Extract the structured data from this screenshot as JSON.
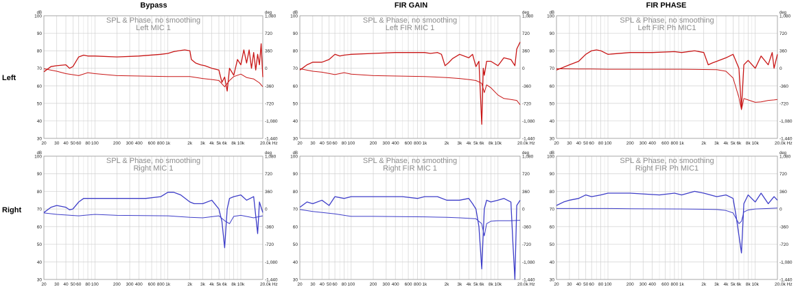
{
  "headers": {
    "columns": [
      "Bypass",
      "FIR GAIN",
      "FIR PHASE"
    ],
    "rows": [
      "Left",
      "Right"
    ]
  },
  "axis": {
    "left_unit": "dB",
    "right_unit": "deg",
    "x_ticks": [
      "20",
      "30",
      "40",
      "50",
      "60",
      "80",
      "100",
      "200",
      "300",
      "400",
      "600",
      "800",
      "1k",
      "2k",
      "3k",
      "4k",
      "5k",
      "6k",
      "8k",
      "10k",
      "20.0k Hz"
    ],
    "y_ticks": [
      "30",
      "40",
      "50",
      "60",
      "70",
      "80",
      "90",
      "100"
    ],
    "phase_ticks": [
      "1,080",
      "720",
      "360",
      "0",
      "-360",
      "-720",
      "-1,080",
      "-1,440"
    ]
  },
  "colors": {
    "left": "#c81414",
    "right": "#3c3cc8",
    "title": "#8c8c8c",
    "grid": "#d0d0d0"
  },
  "chart_data": [
    {
      "type": "line",
      "row": "Left",
      "column": "Bypass",
      "title": "SPL & Phase, no smoothing",
      "subtitle": "Left MIC 1",
      "xlabel": "Hz",
      "ylabel": "dB",
      "y2label": "deg",
      "xscale": "log",
      "xlim": [
        20,
        20000
      ],
      "ylim": [
        30,
        100
      ],
      "y2lim": [
        -1440,
        1080
      ],
      "series": [
        {
          "axis": "spl",
          "x": [
            20,
            25,
            30,
            40,
            45,
            50,
            60,
            70,
            80,
            100,
            200,
            400,
            800,
            1000,
            1200,
            1400,
            1700,
            2000,
            2100,
            2400,
            2800,
            3200,
            4000,
            5000,
            5500,
            6000,
            6500,
            7000,
            8000,
            9000,
            10000,
            11000,
            12000,
            13000,
            14000,
            15000,
            16000,
            17000,
            18000,
            19000,
            20000
          ],
          "values": [
            68,
            71,
            71.5,
            72,
            70,
            71,
            76.5,
            77.5,
            77,
            77,
            76.5,
            77,
            78,
            78.5,
            79.5,
            80,
            80.5,
            80,
            75,
            73,
            72,
            71.5,
            70,
            69,
            62,
            65,
            57,
            70,
            66,
            75,
            72,
            80.5,
            73,
            80.5,
            70,
            79,
            69,
            78,
            72,
            84,
            65
          ]
        },
        {
          "axis": "phase",
          "x": [
            20,
            30,
            40,
            60,
            80,
            100,
            200,
            1000,
            2000,
            3000,
            4000,
            5000,
            6000,
            7000,
            8000,
            10000,
            12000,
            15000,
            18000,
            20000
          ],
          "values": [
            -10,
            -60,
            -110,
            -150,
            -90,
            -110,
            -150,
            -170,
            -170,
            -210,
            -230,
            -250,
            -380,
            -250,
            -170,
            -120,
            -190,
            -220,
            -300,
            -380
          ]
        }
      ]
    },
    {
      "type": "line",
      "row": "Left",
      "column": "FIR GAIN",
      "title": "SPL & Phase, no smoothing",
      "subtitle": "Left FIR MIC 1",
      "xlabel": "Hz",
      "ylabel": "dB",
      "y2label": "deg",
      "xscale": "log",
      "xlim": [
        20,
        20000
      ],
      "ylim": [
        30,
        100
      ],
      "y2lim": [
        -1440,
        1080
      ],
      "series": [
        {
          "axis": "spl",
          "x": [
            20,
            25,
            30,
            40,
            50,
            60,
            70,
            80,
            100,
            200,
            400,
            800,
            1000,
            1200,
            1500,
            1700,
            1900,
            2100,
            2400,
            3000,
            4000,
            4500,
            5000,
            5500,
            6000,
            6300,
            6500,
            7000,
            8000,
            10000,
            12000,
            15000,
            17000,
            18000,
            20000
          ],
          "values": [
            69,
            72,
            73.5,
            73.5,
            75,
            78,
            77,
            77.5,
            78,
            78.5,
            79,
            79,
            79,
            78.5,
            79,
            78,
            71.5,
            73,
            75.5,
            78,
            76,
            78,
            71,
            74,
            38,
            70,
            66,
            74,
            74,
            71.5,
            76,
            75,
            71.5,
            81,
            85
          ]
        },
        {
          "axis": "phase",
          "x": [
            20,
            30,
            40,
            60,
            80,
            100,
            200,
            1000,
            2000,
            3000,
            4000,
            5000,
            6000,
            6500,
            7000,
            8000,
            10000,
            12000,
            15000,
            18000,
            20000
          ],
          "values": [
            -10,
            -60,
            -80,
            -130,
            -90,
            -120,
            -150,
            -170,
            -190,
            -210,
            -230,
            -250,
            -310,
            -500,
            -340,
            -400,
            -550,
            -620,
            -640,
            -660,
            -750
          ]
        }
      ]
    },
    {
      "type": "line",
      "row": "Left",
      "column": "FIR PHASE",
      "title": "SPL & Phase, no smoothing",
      "subtitle": "Left FIR Ph MIC1",
      "xlabel": "Hz",
      "ylabel": "dB",
      "y2label": "deg",
      "xscale": "log",
      "xlim": [
        20,
        20000
      ],
      "ylim": [
        30,
        100
      ],
      "y2lim": [
        -1440,
        1080
      ],
      "series": [
        {
          "axis": "spl",
          "x": [
            20,
            30,
            40,
            50,
            60,
            70,
            80,
            100,
            200,
            400,
            800,
            1000,
            1500,
            2000,
            2300,
            2600,
            3000,
            4000,
            5000,
            6000,
            6500,
            7000,
            8000,
            10000,
            12000,
            15000,
            17000,
            18000,
            20000
          ],
          "values": [
            69,
            72,
            74,
            78,
            80,
            80.5,
            80,
            78,
            79,
            79,
            79.5,
            79,
            80,
            79,
            72,
            73,
            74,
            76,
            78,
            70,
            47,
            72,
            74.5,
            70,
            77,
            72,
            79,
            70,
            78
          ]
        },
        {
          "axis": "phase",
          "x": [
            20,
            40,
            60,
            100,
            200,
            1000,
            2000,
            3000,
            4000,
            5000,
            6000,
            6500,
            7000,
            8000,
            10000,
            12000,
            15000,
            18000,
            20000
          ],
          "values": [
            -10,
            -15,
            -15,
            -20,
            -20,
            -20,
            -25,
            -30,
            -60,
            -200,
            -600,
            -850,
            -620,
            -650,
            -700,
            -690,
            -660,
            -650,
            -640
          ]
        }
      ]
    },
    {
      "type": "line",
      "row": "Right",
      "column": "Bypass",
      "title": "SPL & Phase, no smoothing",
      "subtitle": "Right MIC 1",
      "xlabel": "Hz",
      "ylabel": "dB",
      "y2label": "deg",
      "xscale": "log",
      "xlim": [
        20,
        20000
      ],
      "ylim": [
        30,
        100
      ],
      "y2lim": [
        -1440,
        1080
      ],
      "series": [
        {
          "axis": "spl",
          "x": [
            20,
            25,
            30,
            40,
            45,
            50,
            60,
            70,
            80,
            100,
            200,
            500,
            800,
            1000,
            1200,
            1500,
            2000,
            2300,
            3000,
            4000,
            5000,
            5500,
            6000,
            6500,
            7000,
            8000,
            10000,
            12000,
            15000,
            17000,
            18000,
            20000
          ],
          "values": [
            68,
            71,
            72,
            71,
            69.5,
            70,
            74,
            76,
            76,
            76,
            76,
            76,
            77,
            79.5,
            79.5,
            78,
            74,
            73,
            73,
            75,
            70,
            63,
            48,
            70,
            76,
            77,
            78,
            75,
            77,
            56,
            74,
            68
          ]
        },
        {
          "axis": "phase",
          "x": [
            20,
            30,
            60,
            100,
            200,
            1000,
            2000,
            3000,
            5000,
            6000,
            7000,
            8000,
            10000,
            15000,
            20000
          ],
          "values": [
            -80,
            -110,
            -140,
            -110,
            -130,
            -140,
            -170,
            -180,
            -140,
            -240,
            -300,
            -150,
            -130,
            -180,
            -140
          ]
        }
      ]
    },
    {
      "type": "line",
      "row": "Right",
      "column": "FIR GAIN",
      "title": "SPL & Phase, no smoothing",
      "subtitle": "Right FIR MIC 1",
      "xlabel": "Hz",
      "ylabel": "dB",
      "y2label": "deg",
      "xscale": "log",
      "xlim": [
        20,
        20000
      ],
      "ylim": [
        30,
        100
      ],
      "y2lim": [
        -1440,
        1080
      ],
      "series": [
        {
          "axis": "spl",
          "x": [
            20,
            25,
            30,
            40,
            50,
            60,
            80,
            100,
            200,
            500,
            800,
            1000,
            1500,
            2000,
            3000,
            4000,
            4500,
            5000,
            5500,
            6000,
            6500,
            7000,
            8000,
            10000,
            12000,
            15000,
            16000,
            17000,
            18000,
            20000
          ],
          "values": [
            71,
            74,
            73,
            75,
            72,
            77,
            76,
            77,
            77,
            77,
            76,
            77,
            77,
            75,
            75,
            76,
            73,
            70,
            60,
            36,
            70,
            75,
            74,
            75,
            76,
            74,
            50,
            30,
            72,
            75
          ]
        },
        {
          "axis": "phase",
          "x": [
            20,
            30,
            60,
            100,
            200,
            1000,
            2000,
            3000,
            5000,
            6000,
            6500,
            7000,
            8000,
            10000,
            15000,
            20000
          ],
          "values": [
            -10,
            -50,
            -100,
            -150,
            -150,
            -160,
            -170,
            -180,
            -200,
            -300,
            -550,
            -300,
            -250,
            -240,
            -240,
            -230
          ]
        }
      ]
    },
    {
      "type": "line",
      "row": "Right",
      "column": "FIR PHASE",
      "title": "SPL & Phase, no smoothing",
      "subtitle": "Right FIR Ph MIC1",
      "xlabel": "Hz",
      "ylabel": "dB",
      "y2label": "deg",
      "xscale": "log",
      "xlim": [
        20,
        20000
      ],
      "ylim": [
        30,
        100
      ],
      "y2lim": [
        -1440,
        1080
      ],
      "series": [
        {
          "axis": "spl",
          "x": [
            20,
            25,
            30,
            40,
            50,
            60,
            80,
            100,
            200,
            500,
            800,
            1000,
            1500,
            2000,
            3000,
            4000,
            5000,
            5500,
            6000,
            6500,
            7000,
            8000,
            10000,
            12000,
            15000,
            18000,
            20000
          ],
          "values": [
            72,
            74,
            75,
            76,
            78,
            77,
            78,
            79,
            79,
            78,
            79,
            78,
            80,
            79,
            77,
            78,
            76,
            66,
            55,
            45,
            73,
            78,
            74,
            79,
            73,
            77,
            75
          ]
        },
        {
          "axis": "phase",
          "x": [
            20,
            100,
            200,
            1000,
            2000,
            3000,
            4000,
            5000,
            6000,
            6500,
            7000,
            8000,
            10000,
            15000,
            20000
          ],
          "values": [
            10,
            10,
            5,
            0,
            -5,
            -10,
            -30,
            -80,
            -300,
            -250,
            -60,
            -20,
            0,
            10,
            20
          ]
        }
      ]
    }
  ]
}
